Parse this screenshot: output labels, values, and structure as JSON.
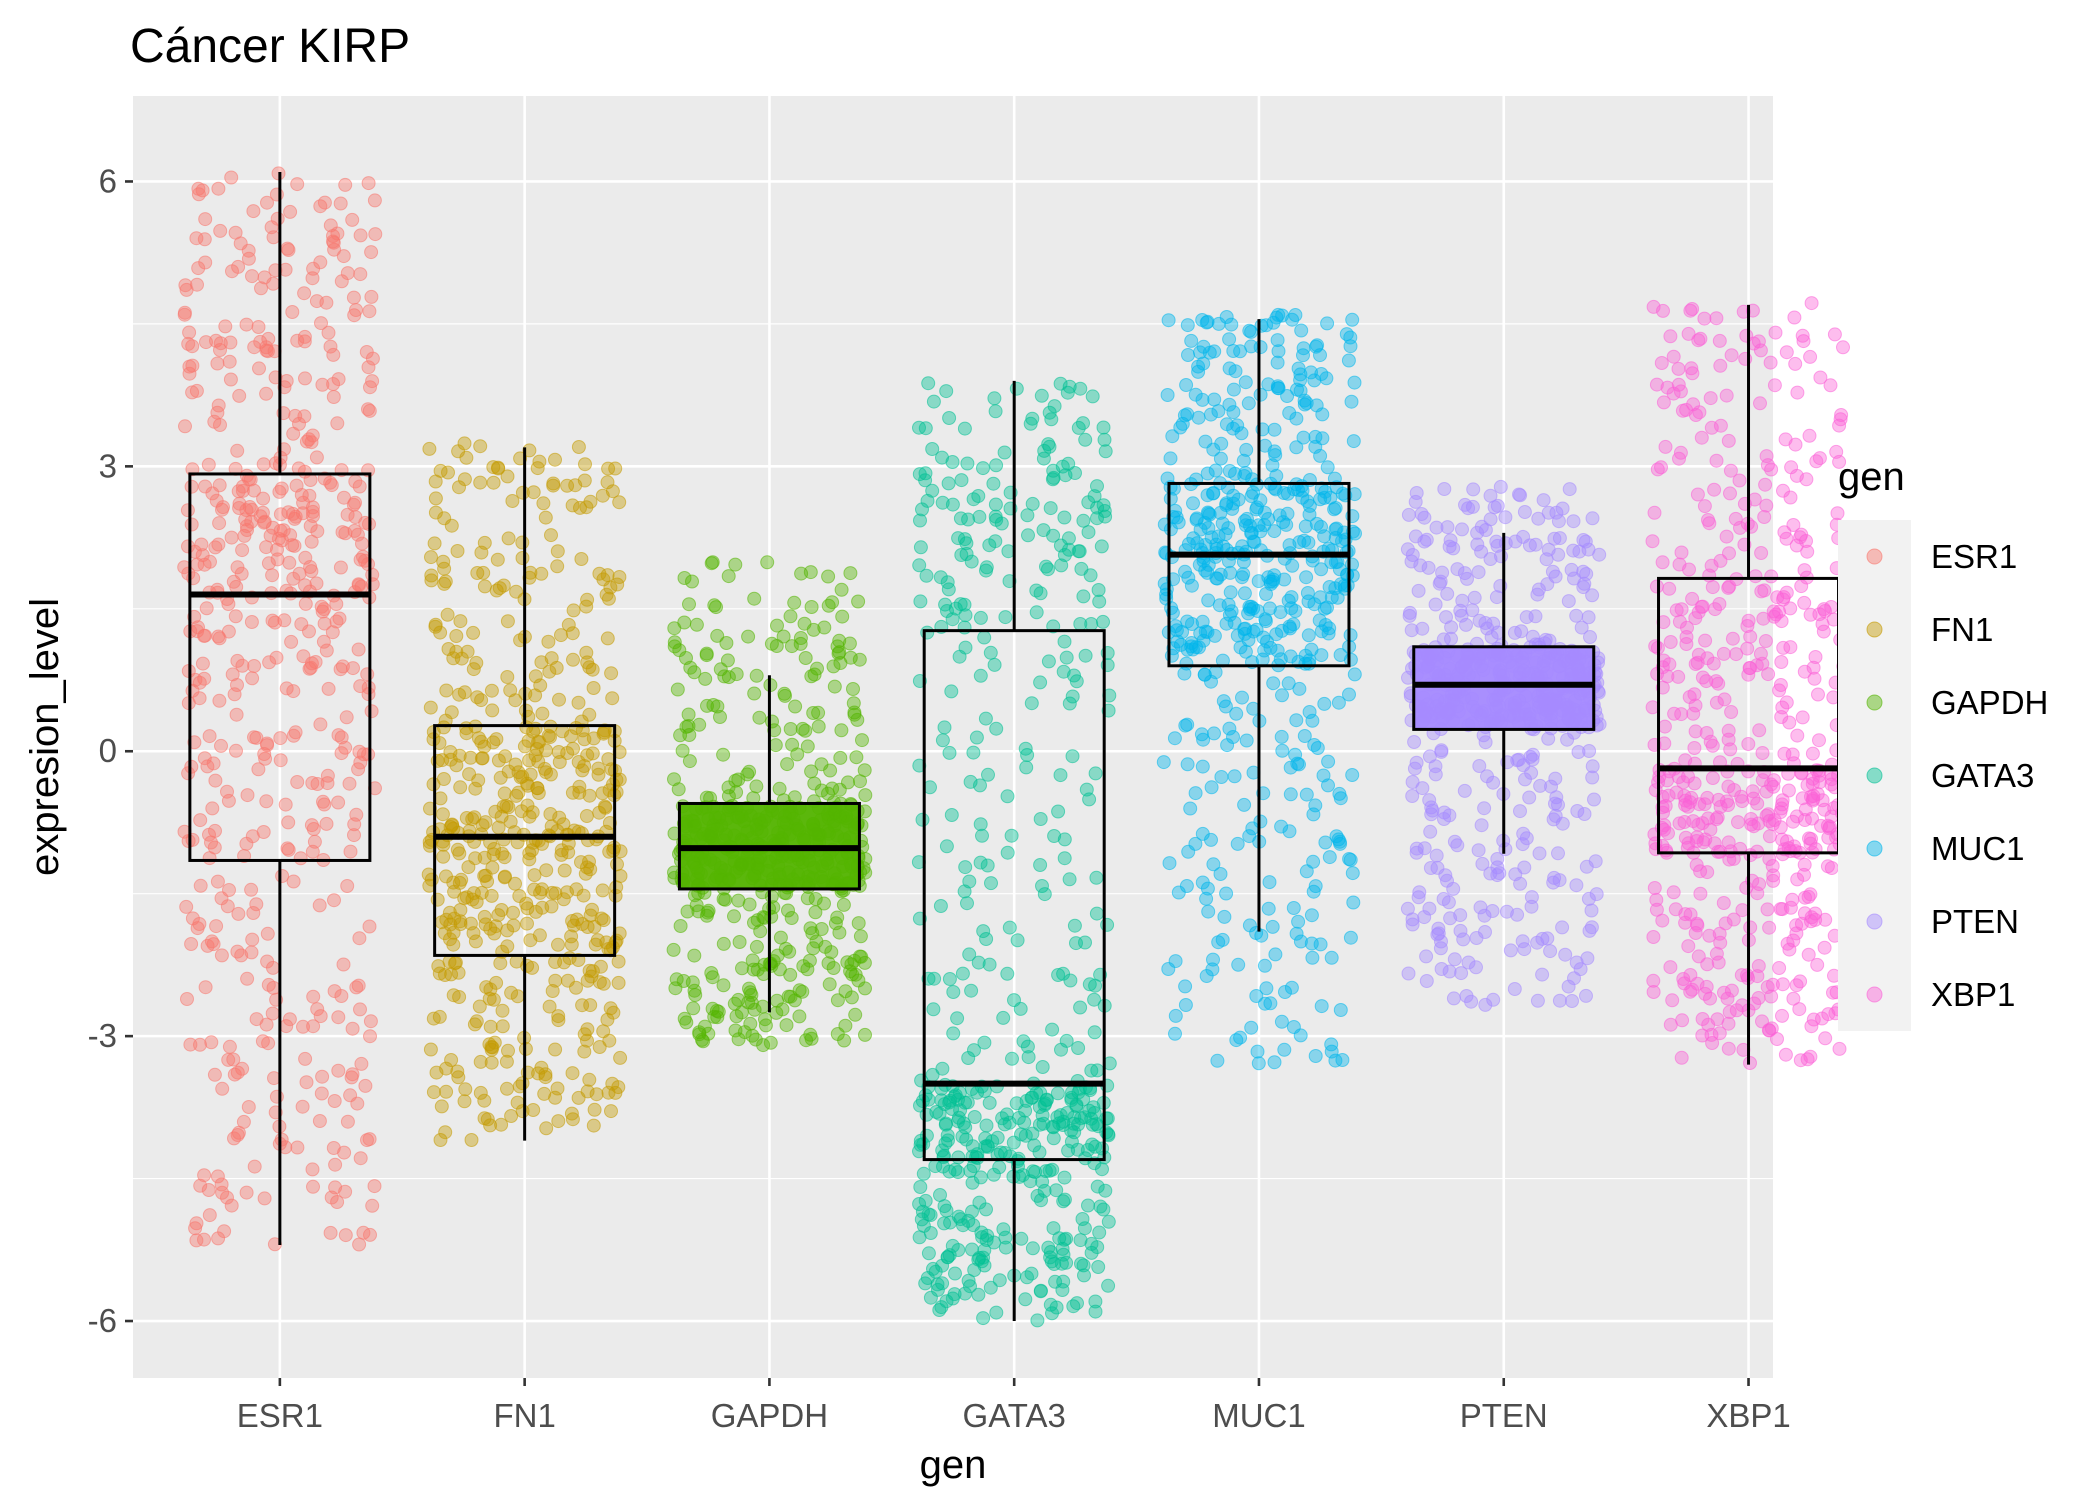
{
  "chart_data": {
    "type": "boxplot",
    "title": "Cáncer KIRP",
    "xlabel": "gen",
    "ylabel": "expresion_level",
    "ylim": [
      -6.6,
      6.9
    ],
    "yticks": [
      -6,
      -3,
      0,
      3,
      6
    ],
    "ytick_labels": [
      "-6",
      "-3",
      "0",
      "3",
      "6"
    ],
    "grid": true,
    "legend": {
      "title": "gen",
      "position": "right"
    },
    "categories": [
      "ESR1",
      "FN1",
      "GAPDH",
      "GATA3",
      "MUC1",
      "PTEN",
      "XBP1"
    ],
    "series": [
      {
        "name": "ESR1",
        "color": "#F8766D",
        "whisker_low": -5.2,
        "q1": -1.15,
        "median": 1.65,
        "q3": 2.92,
        "whisker_high": 6.1,
        "points_min": -5.2,
        "points_max": 6.1
      },
      {
        "name": "FN1",
        "color": "#C49A00",
        "whisker_low": -4.1,
        "q1": -2.15,
        "median": -0.9,
        "q3": 0.27,
        "whisker_high": 3.2,
        "points_min": -4.1,
        "points_max": 3.25
      },
      {
        "name": "GAPDH",
        "color": "#53B400",
        "whisker_low": -2.75,
        "q1": -1.45,
        "median": -1.02,
        "q3": -0.55,
        "whisker_high": 0.8,
        "points_min": -3.1,
        "points_max": 2.0
      },
      {
        "name": "GATA3",
        "color": "#00C094",
        "whisker_low": -6.0,
        "q1": -4.3,
        "median": -3.5,
        "q3": 1.27,
        "whisker_high": 3.9,
        "points_min": -6.0,
        "points_max": 3.9
      },
      {
        "name": "MUC1",
        "color": "#00B6EB",
        "whisker_low": -1.9,
        "q1": 0.9,
        "median": 2.07,
        "q3": 2.82,
        "whisker_high": 4.55,
        "points_min": -3.3,
        "points_max": 4.6
      },
      {
        "name": "PTEN",
        "color": "#A58AFF",
        "whisker_low": -1.08,
        "q1": 0.23,
        "median": 0.7,
        "q3": 1.1,
        "whisker_high": 2.3,
        "points_min": -2.7,
        "points_max": 2.8
      },
      {
        "name": "XBP1",
        "color": "#FB61D7",
        "whisker_low": -3.3,
        "q1": -1.07,
        "median": -0.18,
        "q3": 1.82,
        "whisker_high": 4.7,
        "points_min": -3.3,
        "points_max": 4.75
      }
    ]
  }
}
